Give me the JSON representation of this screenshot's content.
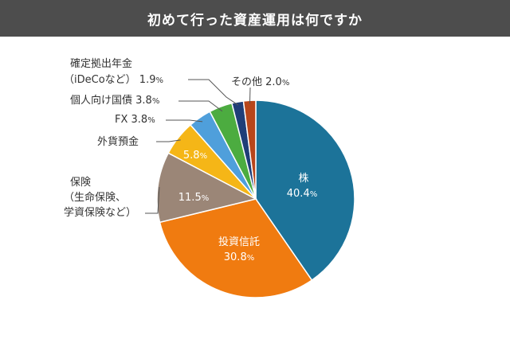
{
  "chart_data": {
    "type": "pie",
    "title": "初めて行った資産運用は何ですか",
    "slices": [
      {
        "key": "kabu",
        "label": "株",
        "value": 40.4,
        "display": "40.4",
        "unit": "%",
        "color": "#1c7399"
      },
      {
        "key": "toshin",
        "label": "投資信託",
        "value": 30.8,
        "display": "30.8",
        "unit": "%",
        "color": "#f07b10"
      },
      {
        "key": "hoken",
        "label": "保険",
        "label2": "（生命保険、",
        "label3": "学資保険など）",
        "value": 11.5,
        "display": "11.5",
        "unit": "%",
        "color": "#9b8677"
      },
      {
        "key": "gaika",
        "label": "外貨預金",
        "value": 5.8,
        "display": "5.8",
        "unit": "%",
        "color": "#f5b617"
      },
      {
        "key": "fx",
        "label": "FX",
        "value": 3.8,
        "display": "3.8",
        "unit": "%",
        "color": "#4f9fdb"
      },
      {
        "key": "kokusai",
        "label": "個人向け国債",
        "value": 3.8,
        "display": "3.8",
        "unit": "%",
        "color": "#4cac40"
      },
      {
        "key": "ideco",
        "label": "確定拠出年金",
        "label2": "（iDeCoなど）",
        "value": 1.9,
        "display": "1.9",
        "unit": "%",
        "color": "#1f3e78"
      },
      {
        "key": "other",
        "label": "その他",
        "value": 2.0,
        "display": "2.0",
        "unit": "%",
        "color": "#b8461b"
      }
    ]
  }
}
